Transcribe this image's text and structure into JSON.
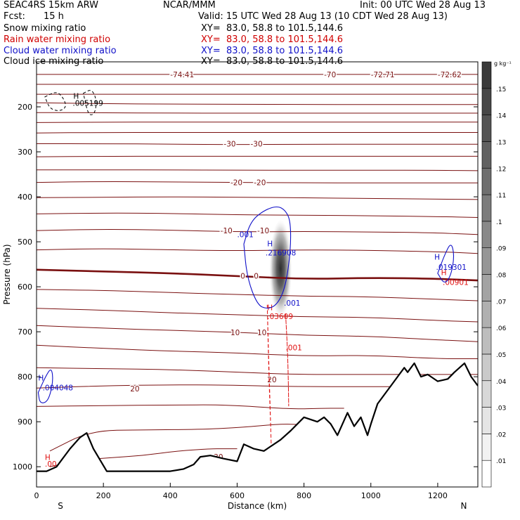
{
  "header": {
    "model": "SEAC4RS 15km ARW",
    "center": "NCAR/MMM",
    "init": "Init: 00 UTC Wed 28 Aug 13",
    "fcst_label": "Fcst:",
    "fcst_value": "15 h",
    "valid": "Valid: 15 UTC Wed 28 Aug 13 (10 CDT Wed 28 Aug 13)"
  },
  "fields": [
    {
      "name": "Snow mixing ratio",
      "xy": "XY=  83.0, 58.8 to 101.5,144.6",
      "color": "#000000"
    },
    {
      "name": "Rain water mixing ratio",
      "xy": "XY=  83.0, 58.8 to 101.5,144.6",
      "color": "#d00000"
    },
    {
      "name": "Cloud water mixing ratio",
      "xy": "XY=  83.0, 58.8 to 101.5,144.6",
      "color": "#1010c8"
    },
    {
      "name": "Cloud ice mixing ratio",
      "xy": "XY=  83.0, 58.8 to 101.5,144.6",
      "color": "#000000"
    }
  ],
  "chart_data": {
    "type": "contour_cross_section",
    "xlabel": "Distance (km)",
    "ylabel": "Pressure (hPa)",
    "xlim": [
      0,
      1320
    ],
    "ylim": [
      1045,
      100
    ],
    "y_scale": "linear, pressure decreasing upward",
    "x_ticks": [
      0,
      200,
      400,
      600,
      800,
      1000,
      1200
    ],
    "y_ticks": [
      200,
      300,
      400,
      500,
      600,
      700,
      800,
      900,
      1000
    ],
    "x_end_labels": {
      "left": "S",
      "right": "N"
    },
    "colorbar": {
      "unit": "g kg⁻¹",
      "levels": [
        ".01",
        ".02",
        ".03",
        ".04",
        ".05",
        ".06",
        ".07",
        ".08",
        ".09",
        ".1",
        ".11",
        ".12",
        ".13",
        ".14",
        ".15"
      ],
      "color_start": "#ffffff",
      "color_end": "#3a3a3a"
    },
    "temperature_isotherm_color": "#7a1010",
    "temperature_isotherms": [
      {
        "y": [
          128,
          128,
          128,
          128,
          128,
          128,
          128,
          128
        ],
        "x": [
          0,
          200,
          400,
          600,
          800,
          1000,
          1200,
          1320
        ]
      },
      {
        "y": [
          150,
          150,
          150,
          150,
          150,
          150,
          150,
          150
        ],
        "x": [
          0,
          200,
          400,
          600,
          800,
          1000,
          1200,
          1320
        ]
      },
      {
        "y": [
          172,
          172,
          172,
          172,
          172,
          172,
          172,
          172
        ],
        "x": [
          0,
          200,
          400,
          600,
          800,
          1000,
          1200,
          1320
        ]
      },
      {
        "y": [
          191,
          193,
          194,
          194,
          195,
          195,
          195,
          195
        ],
        "x": [
          0,
          200,
          400,
          600,
          800,
          1000,
          1200,
          1320
        ]
      },
      {
        "y": [
          213,
          213,
          214,
          214,
          214,
          214,
          214,
          214
        ],
        "x": [
          0,
          200,
          400,
          600,
          800,
          1000,
          1200,
          1320
        ]
      },
      {
        "y": [
          235,
          234,
          234,
          234,
          234,
          234,
          234,
          234
        ],
        "x": [
          0,
          200,
          400,
          600,
          800,
          1000,
          1200,
          1320
        ]
      },
      {
        "y": [
          258,
          257,
          257,
          257,
          257,
          257,
          257,
          257
        ],
        "x": [
          0,
          200,
          400,
          600,
          800,
          1000,
          1200,
          1320
        ]
      },
      {
        "y": [
          282,
          282,
          283,
          284,
          283,
          283,
          283,
          283
        ],
        "x": [
          0,
          200,
          400,
          600,
          800,
          1000,
          1200,
          1320
        ]
      },
      {
        "y": [
          311,
          310,
          310,
          310,
          310,
          310,
          310,
          310
        ],
        "x": [
          0,
          200,
          400,
          600,
          800,
          1000,
          1200,
          1320
        ]
      },
      {
        "y": [
          340,
          340,
          340,
          341,
          341,
          341,
          341,
          342
        ],
        "x": [
          0,
          200,
          400,
          600,
          800,
          1000,
          1200,
          1320
        ]
      },
      {
        "y": [
          368,
          366,
          367,
          368,
          369,
          369,
          369,
          369
        ],
        "x": [
          0,
          200,
          400,
          600,
          800,
          1000,
          1200,
          1320
        ]
      },
      {
        "y": [
          402,
          401,
          400,
          401,
          402,
          404,
          405,
          406
        ],
        "x": [
          0,
          200,
          400,
          600,
          800,
          1000,
          1200,
          1320
        ]
      },
      {
        "y": [
          438,
          436,
          437,
          440,
          441,
          442,
          444,
          446
        ],
        "x": [
          0,
          200,
          400,
          600,
          800,
          1000,
          1200,
          1320
        ]
      },
      {
        "y": [
          475,
          472,
          474,
          478,
          477,
          478,
          480,
          484
        ],
        "x": [
          0,
          200,
          400,
          600,
          800,
          1000,
          1200,
          1320
        ]
      },
      {
        "y": [
          518,
          515,
          518,
          520,
          518,
          519,
          522,
          526
        ],
        "x": [
          0,
          200,
          400,
          600,
          800,
          1000,
          1200,
          1320
        ]
      },
      {
        "y": [
          562,
          566,
          570,
          576,
          583,
          580,
          582,
          586
        ],
        "x": [
          0,
          200,
          400,
          600,
          800,
          1000,
          1200,
          1320
        ],
        "bold": true
      },
      {
        "y": [
          606,
          608,
          613,
          617,
          621,
          622,
          628,
          631
        ],
        "x": [
          0,
          200,
          400,
          600,
          800,
          1000,
          1200,
          1320
        ]
      },
      {
        "y": [
          648,
          652,
          658,
          662,
          667,
          668,
          675,
          678
        ],
        "x": [
          0,
          200,
          400,
          600,
          800,
          1000,
          1200,
          1320
        ]
      },
      {
        "y": [
          686,
          692,
          697,
          701,
          708,
          710,
          718,
          722
        ],
        "x": [
          0,
          200,
          400,
          600,
          800,
          1000,
          1200,
          1320
        ]
      },
      {
        "y": [
          730,
          737,
          743,
          747,
          754,
          752,
          760,
          760
        ],
        "x": [
          0,
          200,
          400,
          600,
          800,
          1000,
          1200,
          1320
        ]
      },
      {
        "y": [
          780,
          782,
          784,
          790,
          795,
          795,
          795,
          795
        ],
        "x": [
          0,
          200,
          400,
          600,
          780,
          1000,
          1200,
          1320
        ]
      },
      {
        "y": [
          825,
          820,
          818,
          818,
          822,
          822,
          822,
          822
        ],
        "x": [
          0,
          200,
          400,
          560,
          760,
          1000,
          1200,
          1320
        ]
      },
      {
        "y": [
          866,
          864,
          863,
          862,
          872,
          870,
          870,
          870
        ],
        "x": [
          0,
          200,
          400,
          560,
          760,
          860,
          900,
          920
        ]
      },
      {
        "y": [
          965,
          920,
          918,
          917,
          912,
          908,
          905,
          906
        ],
        "x": [
          40,
          160,
          320,
          500,
          620,
          680,
          740,
          780
        ]
      },
      {
        "y": [
          1000,
          985,
          980,
          975,
          965,
          960,
          960,
          960
        ],
        "x": [
          40,
          130,
          220,
          320,
          420,
          520,
          560,
          600
        ]
      }
    ],
    "temperature_labels": [
      {
        "text": "-74.41",
        "x": 400,
        "y": 128
      },
      {
        "text": "-70",
        "x": 860,
        "y": 128
      },
      {
        "text": "-72.71",
        "x": 1000,
        "y": 128
      },
      {
        "text": "-72.62",
        "x": 1200,
        "y": 128
      },
      {
        "text": "-30",
        "x": 560,
        "y": 282
      },
      {
        "text": "-30",
        "x": 640,
        "y": 282
      },
      {
        "text": "-20",
        "x": 580,
        "y": 368
      },
      {
        "text": "-20",
        "x": 650,
        "y": 368
      },
      {
        "text": "-10",
        "x": 550,
        "y": 475
      },
      {
        "text": "-10",
        "x": 660,
        "y": 475
      },
      {
        "text": "0",
        "x": 610,
        "y": 576
      },
      {
        "text": "0",
        "x": 650,
        "y": 576
      },
      {
        "text": "10",
        "x": 580,
        "y": 701
      },
      {
        "text": "10",
        "x": 660,
        "y": 701
      },
      {
        "text": "20",
        "x": 280,
        "y": 826
      },
      {
        "text": "20",
        "x": 690,
        "y": 806
      },
      {
        "text": "30",
        "x": 530,
        "y": 978
      }
    ],
    "terrain": {
      "x": [
        0,
        30,
        60,
        100,
        130,
        150,
        170,
        210,
        300,
        400,
        440,
        470,
        490,
        520,
        560,
        600,
        620,
        650,
        680,
        700,
        730,
        760,
        800,
        840,
        860,
        880,
        900,
        930,
        950,
        970,
        990,
        1000,
        1020,
        1060,
        1080,
        1100,
        1110,
        1130,
        1150,
        1170,
        1200,
        1230,
        1250,
        1280,
        1300,
        1320
      ],
      "y": [
        1010,
        1010,
        1000,
        960,
        935,
        925,
        960,
        1010,
        1010,
        1010,
        1005,
        995,
        978,
        975,
        982,
        988,
        950,
        960,
        965,
        955,
        940,
        920,
        890,
        900,
        890,
        905,
        930,
        880,
        910,
        890,
        930,
        905,
        860,
        820,
        800,
        780,
        790,
        770,
        800,
        795,
        810,
        805,
        790,
        770,
        800,
        820
      ]
    },
    "cloud_water_contours": [
      {
        "label": ".001",
        "x": [
          620,
          640,
          680,
          720,
          745,
          760,
          760,
          745,
          720,
          690,
          660,
          630,
          620
        ],
        "y": [
          505,
          455,
          430,
          420,
          430,
          455,
          520,
          600,
          640,
          650,
          640,
          580,
          505
        ]
      },
      {
        "label": ".001",
        "x": [
          1200,
          1220,
          1240,
          1250,
          1240,
          1220,
          1200
        ],
        "y": [
          570,
          530,
          500,
          530,
          575,
          595,
          570
        ]
      },
      {
        "label": "",
        "x": [
          5,
          30,
          45,
          50,
          35,
          10,
          5
        ],
        "y": [
          835,
          795,
          780,
          810,
          855,
          860,
          835
        ]
      }
    ],
    "cloud_water_labels": [
      {
        "text": "H",
        "x": 690,
        "y": 510
      },
      {
        "text": ".216908",
        "x": 685,
        "y": 530
      },
      {
        "text": ".001",
        "x": 600,
        "y": 490
      },
      {
        "text": ".001",
        "x": 740,
        "y": 642
      },
      {
        "text": "H",
        "x": 1190,
        "y": 540
      },
      {
        "text": ".019301",
        "x": 1195,
        "y": 562
      },
      {
        "text": "H",
        "x": 5,
        "y": 808
      },
      {
        "text": ".004048",
        "x": 18,
        "y": 830
      }
    ],
    "rain_water_contours": [
      {
        "label": ".001",
        "x": [
          690,
          695,
          700,
          703,
          700,
          696,
          690
        ],
        "y": [
          640,
          800,
          900,
          975,
          900,
          800,
          640
        ]
      },
      {
        "label": ".001",
        "x": [
          745,
          752,
          755,
          752,
          745
        ],
        "y": [
          660,
          760,
          900,
          760,
          660
        ]
      }
    ],
    "rain_water_labels": [
      {
        "text": "H",
        "x": 690,
        "y": 652
      },
      {
        "text": ".03609",
        "x": 690,
        "y": 672
      },
      {
        "text": ".001",
        "x": 745,
        "y": 741
      },
      {
        "text": "H",
        "x": 1210,
        "y": 574
      },
      {
        "text": ".00901",
        "x": 1215,
        "y": 596
      },
      {
        "text": "H",
        "x": 25,
        "y": 985
      },
      {
        "text": ".00",
        "x": 25,
        "y": 1000
      }
    ],
    "snow_contours": [
      {
        "label": "",
        "x": [
          25,
          60,
          80,
          90,
          70,
          40,
          25
        ],
        "y": [
          178,
          165,
          180,
          200,
          210,
          205,
          178
        ]
      },
      {
        "label": "",
        "x": [
          140,
          165,
          180,
          175,
          155,
          140
        ],
        "y": [
          170,
          160,
          185,
          215,
          220,
          170
        ]
      }
    ],
    "snow_labels": [
      {
        "text": "H",
        "x": 110,
        "y": 182
      },
      {
        "text": ".005199",
        "x": 108,
        "y": 198
      }
    ],
    "shaded_cell": {
      "center_x": 730,
      "center_y": 560,
      "peak": 0.15
    }
  }
}
